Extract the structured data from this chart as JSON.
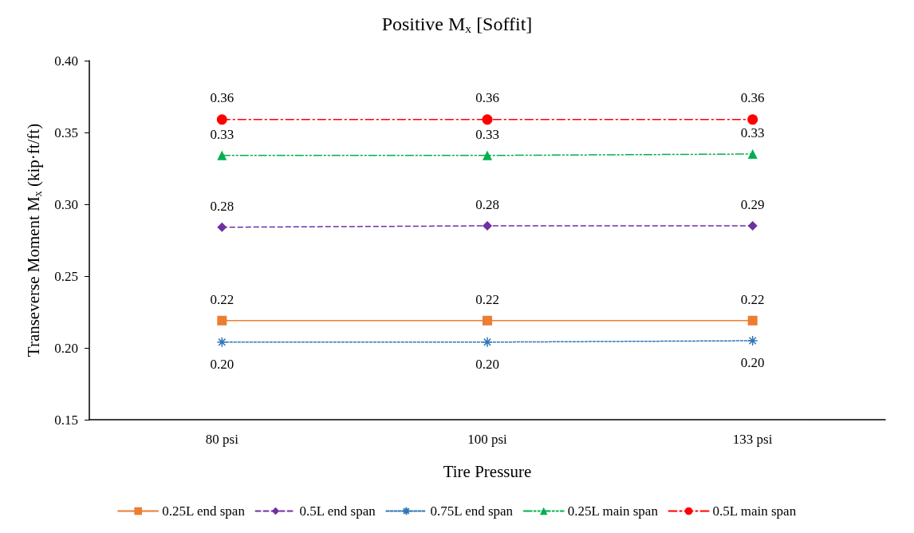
{
  "chart_data": {
    "type": "line",
    "title": "Positive M$_{x}$ [Soffit]",
    "xlabel": "Tire Pressure",
    "ylabel": "Transeverse Moment M$_{x}$ (kip·ft/ft)",
    "categories": [
      "80 psi",
      "100 psi",
      "133 psi"
    ],
    "ylim": [
      0.15,
      0.4
    ],
    "yticks": [
      0.15,
      {
        "value": 0.2,
        "label": "0.20"
      },
      0.25,
      {
        "value": 0.3,
        "label": "0.30"
      },
      0.35,
      {
        "value": 0.4,
        "label": "0.40"
      }
    ],
    "grid": false,
    "legend": "bottom",
    "series": [
      {
        "name": "0.25L end span",
        "color": "#ed7d31",
        "values": [
          0.219,
          0.219,
          0.219
        ],
        "value_labels": [
          "0.22",
          "0.22",
          "0.22"
        ],
        "marker": "square",
        "line_style": "solid"
      },
      {
        "name": "0.5L end span",
        "color": "#7030a0",
        "values": [
          0.284,
          0.285,
          0.285
        ],
        "value_labels": [
          "0.28",
          "0.28",
          "0.29"
        ],
        "marker": "diamond",
        "line_style": "dashed"
      },
      {
        "name": "0.75L end span",
        "color": "#2e75b6",
        "values": [
          0.204,
          0.204,
          0.205
        ],
        "value_labels": [
          "0.20",
          "0.20",
          "0.20"
        ],
        "marker": "cross",
        "line_style": "dotted"
      },
      {
        "name": "0.25L main span",
        "color": "#00b050",
        "values": [
          0.334,
          0.334,
          0.335
        ],
        "value_labels": [
          "0.33",
          "0.33",
          "0.33"
        ],
        "marker": "triangle",
        "line_style": "dashdotdot"
      },
      {
        "name": "0.5L main span",
        "color": "#ff0000",
        "values": [
          0.359,
          0.359,
          0.359
        ],
        "value_labels": [
          "0.36",
          "0.36",
          "0.36"
        ],
        "marker": "circle",
        "line_style": "dashdot"
      }
    ]
  }
}
